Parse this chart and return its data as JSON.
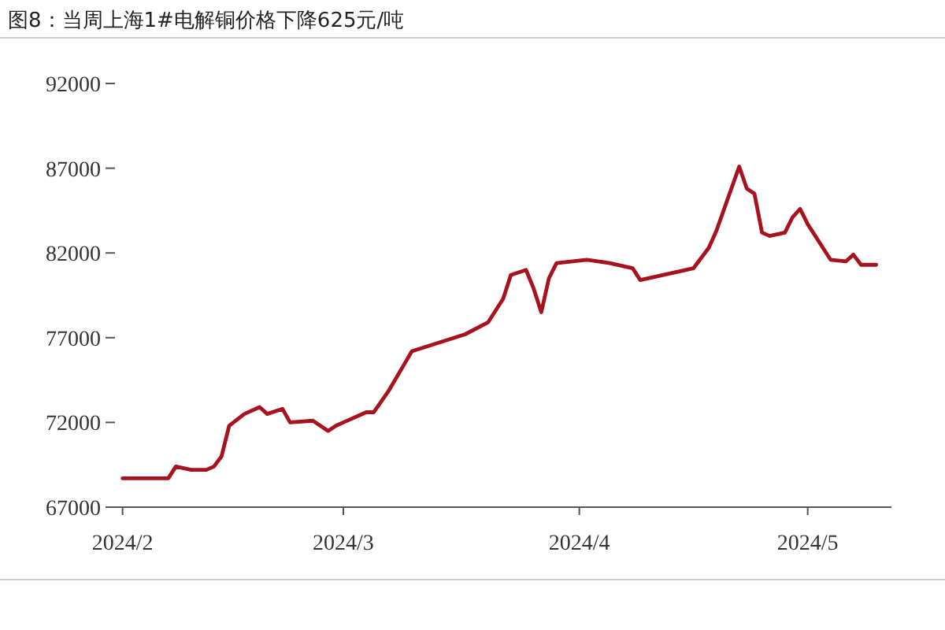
{
  "chart_data": {
    "type": "line",
    "title": "图8：当周上海1#电解铜价格下降625元/吨",
    "x": [
      "2024-02-01",
      "2024-02-07",
      "2024-02-08",
      "2024-02-10",
      "2024-02-12",
      "2024-02-13",
      "2024-02-14",
      "2024-02-15",
      "2024-02-17",
      "2024-02-19",
      "2024-02-20",
      "2024-02-22",
      "2024-02-23",
      "2024-02-26",
      "2024-02-28",
      "2024-02-29",
      "2024-03-01",
      "2024-03-04",
      "2024-03-05",
      "2024-03-07",
      "2024-03-10",
      "2024-03-17",
      "2024-03-20",
      "2024-03-22",
      "2024-03-23",
      "2024-03-25",
      "2024-03-26",
      "2024-03-27",
      "2024-03-28",
      "2024-03-29",
      "2024-04-02",
      "2024-04-05",
      "2024-04-08",
      "2024-04-09",
      "2024-04-16",
      "2024-04-18",
      "2024-04-19",
      "2024-04-22",
      "2024-04-23",
      "2024-04-24",
      "2024-04-25",
      "2024-04-26",
      "2024-04-28",
      "2024-04-29",
      "2024-04-30",
      "2024-05-01",
      "2024-05-03",
      "2024-05-04",
      "2024-05-06",
      "2024-05-07",
      "2024-05-08",
      "2024-05-09",
      "2024-05-10"
    ],
    "series": [
      {
        "color": "#a8121e",
        "values": [
          68700,
          68700,
          69400,
          69200,
          69200,
          69400,
          70000,
          71800,
          72500,
          72900,
          72500,
          72800,
          72000,
          72100,
          71500,
          71800,
          72000,
          72600,
          72600,
          73900,
          76200,
          77200,
          77900,
          79300,
          80700,
          81000,
          79900,
          78500,
          80500,
          81400,
          81600,
          81400,
          81100,
          80400,
          81100,
          82300,
          83300,
          87100,
          85800,
          85500,
          83200,
          83000,
          83200,
          84100,
          84600,
          83700,
          82300,
          81600,
          81500,
          81900,
          81300,
          81300,
          81300
        ]
      }
    ],
    "xlim": [
      "2024-01-31",
      "2024-05-12"
    ],
    "xticks": [
      {
        "value": "2024-02-01",
        "label": "2024/2"
      },
      {
        "value": "2024-03-01",
        "label": "2024/3"
      },
      {
        "value": "2024-04-01",
        "label": "2024/4"
      },
      {
        "value": "2024-05-01",
        "label": "2024/5"
      }
    ],
    "ylim": [
      67000,
      92000
    ],
    "yticks": [
      67000,
      72000,
      77000,
      82000,
      87000,
      92000
    ],
    "marker": "none",
    "line_style": "solid",
    "grid": false
  }
}
